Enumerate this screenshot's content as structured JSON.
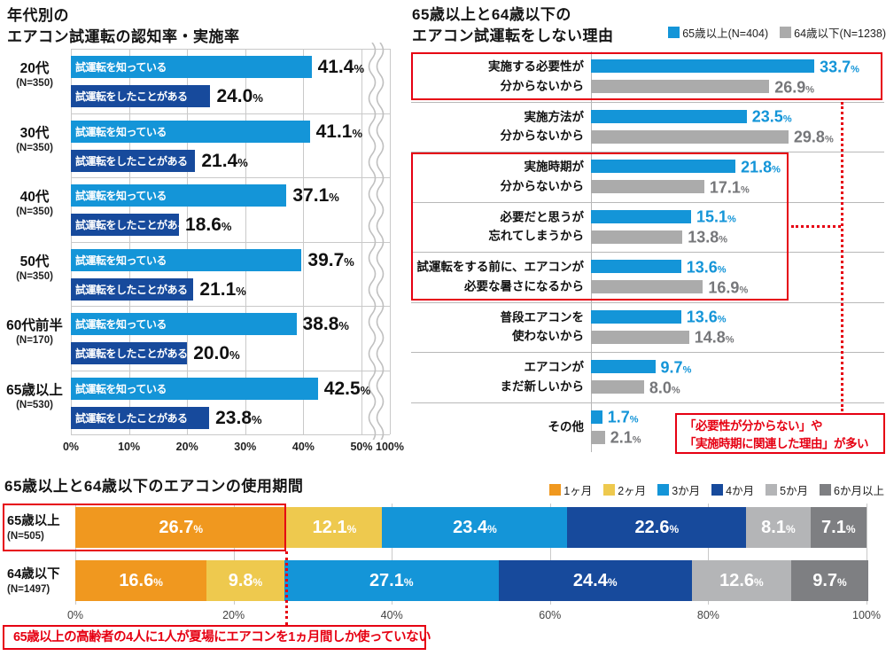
{
  "colors": {
    "light_blue": "#1495d8",
    "dark_blue": "#174a9c",
    "gray_bar": "#ababab",
    "gray_value_text": "#76777a",
    "orange": "#f0981f",
    "yellow": "#eec94e",
    "stack_light_gray": "#b4b5b7",
    "stack_dark_gray": "#7e7f82",
    "red": "#e60012",
    "grid": "#c9c9c9"
  },
  "chart_data": [
    {
      "type": "bar",
      "orientation": "horizontal",
      "title_lines": [
        "年代別の",
        "エアコン試運転の認知率・実施率"
      ],
      "bar_labels": {
        "know": "試運転を知っている",
        "done": "試運転をしたことがある"
      },
      "x_ticks": [
        "0%",
        "10%",
        "20%",
        "30%",
        "40%",
        "50%",
        "100%"
      ],
      "axis_break_between": [
        "50%",
        "100%"
      ],
      "unit": "%",
      "groups": [
        {
          "age": "20代",
          "n": "(N=350)",
          "know": "41.4",
          "done": "24.0"
        },
        {
          "age": "30代",
          "n": "(N=350)",
          "know": "41.1",
          "done": "21.4"
        },
        {
          "age": "40代",
          "n": "(N=350)",
          "know": "37.1",
          "done": "18.6"
        },
        {
          "age": "50代",
          "n": "(N=350)",
          "know": "39.7",
          "done": "21.1"
        },
        {
          "age": "60代前半",
          "n": "(N=170)",
          "know": "38.8",
          "done": "20.0"
        },
        {
          "age": "65歳以上",
          "n": "(N=530)",
          "know": "42.5",
          "done": "23.8"
        }
      ]
    },
    {
      "type": "bar",
      "orientation": "horizontal",
      "title_lines": [
        "65歳以上と64歳以下の",
        "エアコン試運転をしない理由"
      ],
      "legend": [
        {
          "label": "65歳以上(N=404)",
          "color": "#1495d8"
        },
        {
          "label": "64歳以下(N=1238)",
          "color": "#ababab"
        }
      ],
      "unit": "%",
      "rows": [
        {
          "label_lines": [
            "実施する必要性が",
            "分からないから"
          ],
          "older": "33.7",
          "younger": "26.9",
          "highlight": "box1"
        },
        {
          "label_lines": [
            "実施方法が",
            "分からないから"
          ],
          "older": "23.5",
          "younger": "29.8"
        },
        {
          "label_lines": [
            "実施時期が",
            "分からないから"
          ],
          "older": "21.8",
          "younger": "17.1",
          "highlight": "box2"
        },
        {
          "label_lines": [
            "必要だと思うが",
            "忘れてしまうから"
          ],
          "older": "15.1",
          "younger": "13.8",
          "highlight": "box2"
        },
        {
          "label_lines": [
            "試運転をする前に、エアコンが",
            "必要な暑さになるから"
          ],
          "older": "13.6",
          "younger": "16.9",
          "highlight": "box2"
        },
        {
          "label_lines": [
            "普段エアコンを",
            "使わないから"
          ],
          "older": "13.6",
          "younger": "14.8"
        },
        {
          "label_lines": [
            "エアコンが",
            "まだ新しいから"
          ],
          "older": "9.7",
          "younger": "8.0"
        },
        {
          "label_lines": [
            "その他"
          ],
          "older": "1.7",
          "younger": "2.1"
        }
      ],
      "annotation_lines": [
        "「必要性が分からない」や",
        "「実施時期に関連した理由」が多い"
      ]
    },
    {
      "type": "stacked-bar",
      "orientation": "horizontal",
      "title": "65歳以上と64歳以下のエアコンの使用期間",
      "legend": [
        {
          "label": "1ヶ月",
          "color": "#f0981f"
        },
        {
          "label": "2ヶ月",
          "color": "#eec94e"
        },
        {
          "label": "3か月",
          "color": "#1495d8"
        },
        {
          "label": "4か月",
          "color": "#174a9c"
        },
        {
          "label": "5か月",
          "color": "#b4b5b7"
        },
        {
          "label": "6か月以上",
          "color": "#7e7f82"
        }
      ],
      "x_ticks": [
        "0%",
        "20%",
        "40%",
        "60%",
        "80%",
        "100%"
      ],
      "unit": "%",
      "rows": [
        {
          "label": "65歳以上",
          "n": "(N=505)",
          "values": [
            "26.7",
            "12.1",
            "23.4",
            "22.6",
            "8.1",
            "7.1"
          ]
        },
        {
          "label": "64歳以下",
          "n": "(N=1497)",
          "values": [
            "16.6",
            "9.8",
            "27.1",
            "24.4",
            "12.6",
            "9.7"
          ]
        }
      ],
      "annotation": "65歳以上の高齢者の4人に1人が夏場にエアコンを1ヵ月間しか使っていない"
    }
  ]
}
